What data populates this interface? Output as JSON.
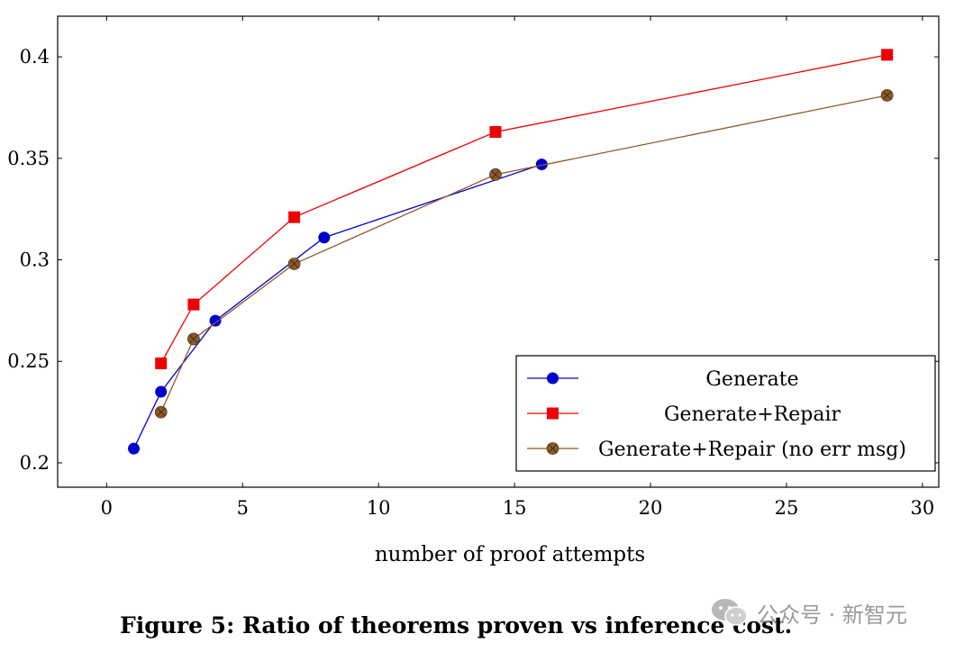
{
  "caption": "Figure 5: Ratio of theorems proven vs inference cost.",
  "watermark_text": "公众号 · 新智元",
  "chart_data": {
    "type": "line",
    "title": "",
    "xlabel": "number of proof attempts",
    "ylabel": "",
    "xlim": [
      -1.8,
      30.6
    ],
    "ylim": [
      0.188,
      0.42
    ],
    "x_ticks": [
      0,
      5,
      10,
      15,
      20,
      25,
      30
    ],
    "y_ticks": [
      0.2,
      0.25,
      0.3,
      0.35,
      0.4
    ],
    "x_tick_labels": [
      "0",
      "5",
      "10",
      "15",
      "20",
      "25",
      "30"
    ],
    "y_tick_labels": [
      "0.2",
      "0.25",
      "0.3",
      "0.35",
      "0.4"
    ],
    "grid": false,
    "legend_position": "bottom-right",
    "series": [
      {
        "name": "Generate",
        "color": "#0000cc",
        "marker": "circle",
        "x": [
          1,
          2,
          4,
          8,
          16
        ],
        "y": [
          0.207,
          0.235,
          0.27,
          0.311,
          0.347
        ]
      },
      {
        "name": "Generate+Repair",
        "color": "#ee0000",
        "marker": "square",
        "x": [
          2,
          3.2,
          6.9,
          14.3,
          28.7
        ],
        "y": [
          0.249,
          0.278,
          0.321,
          0.363,
          0.401
        ]
      },
      {
        "name": "Generate+Repair (no err msg)",
        "color": "#8b5a2b",
        "marker": "otimes",
        "x": [
          2,
          3.2,
          6.9,
          14.3,
          28.7
        ],
        "y": [
          0.225,
          0.261,
          0.298,
          0.342,
          0.381
        ]
      }
    ]
  }
}
